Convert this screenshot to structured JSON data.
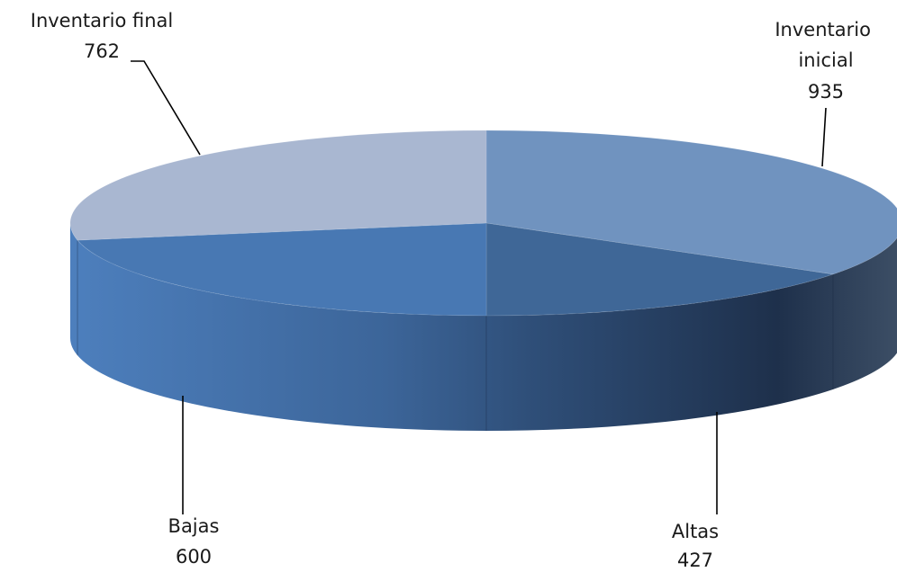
{
  "chart_data": {
    "type": "pie",
    "title": "",
    "categories": [
      "Inventario inicial",
      "Altas",
      "Bajas",
      "Inventario final"
    ],
    "label_lines": [
      [
        "Inventario",
        "inicial"
      ],
      [
        "Altas"
      ],
      [
        "Bajas"
      ],
      [
        "Inventario final"
      ]
    ],
    "values": [
      935,
      427,
      600,
      762
    ],
    "value_labels": [
      "935",
      "427",
      "600",
      "762"
    ],
    "colors": [
      "#7093bf",
      "#3f6797",
      "#4878b3",
      "#a9b7d1"
    ],
    "legend": "none",
    "style": "3d"
  }
}
